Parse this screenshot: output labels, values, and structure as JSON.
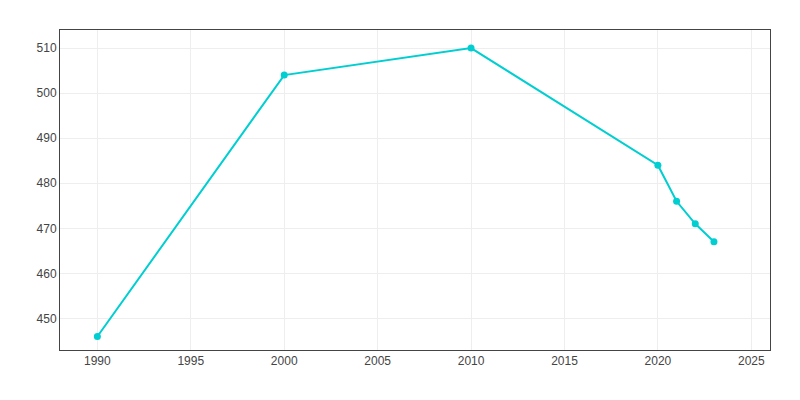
{
  "chart_data": {
    "type": "line",
    "x": [
      1990,
      2000,
      2010,
      2020,
      2021,
      2022,
      2023
    ],
    "values": [
      446,
      504,
      510,
      484,
      476,
      471,
      467
    ],
    "color": "#00CED1",
    "marker": "circle",
    "line_style": "solid",
    "xlim": [
      1988,
      2026
    ],
    "ylim": [
      443,
      514
    ],
    "xticks": [
      1990,
      1995,
      2000,
      2005,
      2010,
      2015,
      2020,
      2025
    ],
    "yticks": [
      450,
      460,
      470,
      480,
      490,
      500,
      510
    ],
    "grid": true
  }
}
